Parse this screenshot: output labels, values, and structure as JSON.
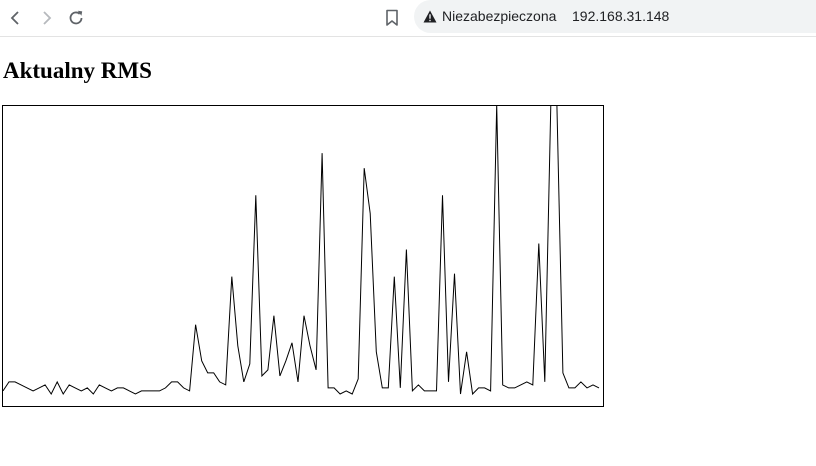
{
  "browser": {
    "security_label": "Niezabezpieczona",
    "url": "192.168.31.148",
    "icons": [
      "back-icon",
      "forward-icon",
      "reload-icon",
      "bookmark-icon",
      "warning-icon"
    ]
  },
  "page": {
    "title": "Aktualny RMS"
  },
  "chart_data": {
    "type": "line",
    "title": "",
    "xlabel": "",
    "ylabel": "",
    "ylim": [
      0,
      100
    ],
    "grid": false,
    "series": [
      {
        "values": [
          5,
          8,
          8,
          7,
          6,
          5,
          6,
          7,
          4,
          8,
          4,
          7,
          6,
          5,
          6,
          4,
          7,
          6,
          5,
          6,
          6,
          5,
          4,
          5,
          5,
          5,
          5,
          6,
          8,
          8,
          6,
          5,
          27,
          15,
          11,
          11,
          8,
          7,
          43,
          20,
          8,
          14,
          70,
          10,
          12,
          30,
          10,
          15,
          21,
          8,
          30,
          20,
          12,
          84,
          6,
          6,
          4,
          5,
          4,
          9,
          79,
          64,
          18,
          6,
          6,
          43,
          6,
          52,
          5,
          7,
          5,
          5,
          5,
          70,
          8,
          44,
          4,
          18,
          4,
          6,
          6,
          5,
          100,
          7,
          6,
          6,
          7,
          8,
          7,
          54,
          8,
          100,
          100,
          11,
          6,
          6,
          8,
          6,
          7,
          6
        ]
      }
    ]
  }
}
